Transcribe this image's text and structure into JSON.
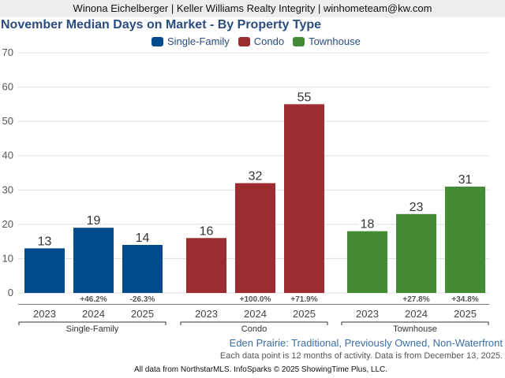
{
  "header": {
    "agent_line": "Winona Eichelberger | Keller Williams Realty Integrity | winhometeam@kw.com"
  },
  "chart_data": {
    "type": "bar",
    "title": "November Median Days on Market - By Property Type",
    "xlabel": "",
    "ylabel": "",
    "ylim": [
      0,
      70
    ],
    "yticks": [
      0,
      10,
      20,
      30,
      40,
      50,
      60,
      70
    ],
    "grid": true,
    "legend_position": "top-center",
    "categories": [
      "2023",
      "2024",
      "2025"
    ],
    "series": [
      {
        "name": "Single-Family",
        "color": "#004b8d",
        "values": [
          13,
          19,
          14
        ],
        "changes": [
          "",
          "+46.2%",
          "-26.3%"
        ]
      },
      {
        "name": "Condo",
        "color": "#9b2c30",
        "values": [
          16,
          32,
          55
        ],
        "changes": [
          "",
          "+100.0%",
          "+71.9%"
        ]
      },
      {
        "name": "Townhouse",
        "color": "#438c35",
        "values": [
          18,
          23,
          31
        ],
        "changes": [
          "",
          "+27.8%",
          "+34.8%"
        ]
      }
    ]
  },
  "footer": {
    "area_line": "Eden Prairie: Traditional, Previously Owned, Non-Waterfront",
    "note_line": "Each data point is 12 months of activity. Data is from December 13, 2025.",
    "source_line": "All data from NorthstarMLS. InfoSparks © 2025 ShowingTime Plus, LLC."
  }
}
